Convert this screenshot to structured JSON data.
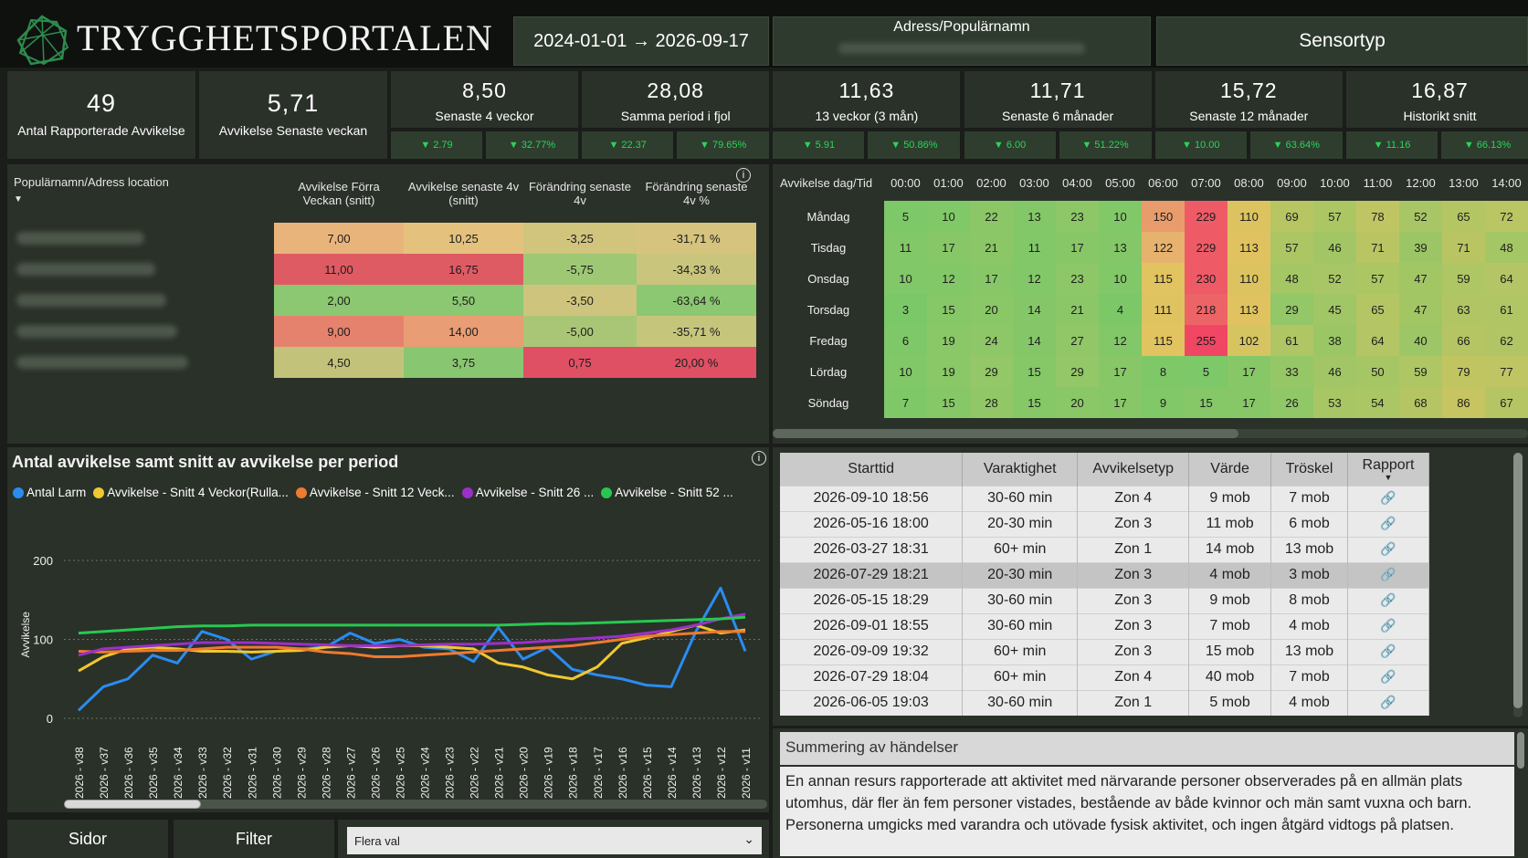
{
  "app": {
    "title": "TRYGGHETSPORTALEN"
  },
  "filters": {
    "date_range": "2024-01-01 → 2026-09-17",
    "address_label": "Adress/Populärnamn",
    "sensor_label": "Sensortyp"
  },
  "kpis": [
    {
      "value": "49",
      "label": "Antal Rapporterade Avvikelse"
    },
    {
      "value": "5,71",
      "label": "Avvikelse Senaste veckan"
    }
  ],
  "metrics": [
    {
      "value": "8,50",
      "label": "Senaste 4 veckor",
      "delta_a": "▼ 2.79",
      "delta_b": "▼ 32.77%"
    },
    {
      "value": "28,08",
      "label": "Samma period i fjol",
      "delta_a": "▼ 22.37",
      "delta_b": "▼ 79.65%"
    },
    {
      "value": "11,63",
      "label": "13 veckor (3 mån)",
      "delta_a": "▼ 5.91",
      "delta_b": "▼ 50.86%"
    },
    {
      "value": "11,71",
      "label": "Senaste 6 månader",
      "delta_a": "▼ 6.00",
      "delta_b": "▼ 51.22%"
    },
    {
      "value": "15,72",
      "label": "Senaste 12 månader",
      "delta_a": "▼ 10.00",
      "delta_b": "▼ 63.64%"
    },
    {
      "value": "16,87",
      "label": "Historikt snitt",
      "delta_a": "▼ 11.16",
      "delta_b": "▼ 66.13%"
    }
  ],
  "deviation_table": {
    "headers": [
      "Populärnamn/Adress location",
      "Avvikelse Förra Veckan (snitt)",
      "Avvikelse senaste 4v (snitt)",
      "Förändring senaste 4v",
      "Förändring senaste 4v %"
    ],
    "rows": [
      {
        "c1": "7,00",
        "c2": "10,25",
        "c3": "-3,25",
        "c4": "-31,71 %",
        "col": [
          "#e9b47b",
          "#e4c27d",
          "#d1c47d",
          "#d5c37e"
        ]
      },
      {
        "c1": "11,00",
        "c2": "16,75",
        "c3": "-5,75",
        "c4": "-34,33 %",
        "col": [
          "#df5b64",
          "#df5b64",
          "#9fc874",
          "#c9c57d"
        ]
      },
      {
        "c1": "2,00",
        "c2": "5,50",
        "c3": "-3,50",
        "c4": "-63,64 %",
        "col": [
          "#8cc772",
          "#8cc772",
          "#cec47d",
          "#8cc772"
        ]
      },
      {
        "c1": "9,00",
        "c2": "14,00",
        "c3": "-5,00",
        "c4": "-35,71 %",
        "col": [
          "#e5826d",
          "#e89d74",
          "#a9c676",
          "#c6c57c"
        ]
      },
      {
        "c1": "4,50",
        "c2": "3,75",
        "c3": "0,75",
        "c4": "20,00 %",
        "col": [
          "#c3c27a",
          "#89c671",
          "#df5065",
          "#df5065"
        ]
      }
    ]
  },
  "heatmap": {
    "corner": "Avvikelse dag/Tid",
    "hours": [
      "00:00",
      "01:00",
      "02:00",
      "03:00",
      "04:00",
      "05:00",
      "06:00",
      "07:00",
      "08:00",
      "09:00",
      "10:00",
      "11:00",
      "12:00",
      "13:00",
      "14:00"
    ],
    "rows": [
      {
        "day": "Måndag",
        "values": [
          5,
          10,
          22,
          13,
          23,
          10,
          150,
          229,
          110,
          69,
          57,
          78,
          52,
          65,
          72
        ]
      },
      {
        "day": "Tisdag",
        "values": [
          11,
          17,
          21,
          11,
          17,
          13,
          122,
          229,
          113,
          57,
          46,
          71,
          39,
          71,
          48
        ]
      },
      {
        "day": "Onsdag",
        "values": [
          10,
          12,
          17,
          12,
          23,
          10,
          115,
          230,
          110,
          48,
          52,
          57,
          47,
          59,
          64
        ]
      },
      {
        "day": "Torsdag",
        "values": [
          3,
          15,
          20,
          14,
          21,
          4,
          111,
          218,
          113,
          29,
          45,
          65,
          47,
          63,
          61
        ]
      },
      {
        "day": "Fredag",
        "values": [
          6,
          19,
          24,
          14,
          27,
          12,
          115,
          255,
          102,
          61,
          38,
          64,
          40,
          66,
          62
        ]
      },
      {
        "day": "Lördag",
        "values": [
          10,
          19,
          29,
          15,
          29,
          17,
          8,
          5,
          17,
          33,
          46,
          50,
          59,
          79,
          77
        ]
      },
      {
        "day": "Söndag",
        "values": [
          7,
          15,
          28,
          15,
          20,
          17,
          9,
          15,
          17,
          26,
          53,
          54,
          68,
          86,
          67
        ]
      }
    ]
  },
  "chart_data": {
    "type": "line",
    "title": "Antal avvikelse samt snitt av avvikelse per period",
    "ylabel": "Avvikelse",
    "ylim": [
      0,
      200
    ],
    "yticks": [
      0,
      100,
      200
    ],
    "x": [
      "2026 - v38",
      "2026 - v37",
      "2026 - v36",
      "2026 - v35",
      "2026 - v34",
      "2026 - v33",
      "2026 - v32",
      "2026 - v31",
      "2026 - v30",
      "2026 - v29",
      "2026 - v28",
      "2026 - v27",
      "2026 - v26",
      "2026 - v25",
      "2026 - v24",
      "2026 - v23",
      "2026 - v22",
      "2026 - v21",
      "2026 - v20",
      "2026 - v19",
      "2026 - v18",
      "2026 - v17",
      "2026 - v16",
      "2026 - v15",
      "2026 - v14",
      "2026 - v13",
      "2026 - v12",
      "2026 - v11"
    ],
    "series": [
      {
        "name": "Antal Larm",
        "color": "#2a8cf0",
        "values": [
          10,
          40,
          50,
          80,
          70,
          110,
          100,
          75,
          85,
          88,
          90,
          108,
          95,
          100,
          90,
          88,
          72,
          115,
          75,
          90,
          62,
          55,
          50,
          42,
          40,
          110,
          165,
          85
        ]
      },
      {
        "name": "Avvikelse - Snitt 4 Veckor(Rulla...",
        "color": "#f0c830",
        "values": [
          60,
          78,
          88,
          90,
          88,
          85,
          85,
          84,
          85,
          86,
          90,
          92,
          90,
          92,
          92,
          90,
          88,
          70,
          65,
          55,
          50,
          65,
          95,
          102,
          110,
          118,
          108,
          112
        ]
      },
      {
        "name": "Avvikelse - Snitt 12 Veck...",
        "color": "#f07a30",
        "values": [
          85,
          84,
          85,
          86,
          86,
          88,
          90,
          90,
          90,
          88,
          84,
          82,
          78,
          78,
          80,
          82,
          84,
          86,
          88,
          90,
          92,
          96,
          100,
          104,
          106,
          108,
          110,
          110
        ]
      },
      {
        "name": "Avvikelse - Snitt 26 ...",
        "color": "#9b30c8",
        "values": [
          80,
          88,
          90,
          92,
          94,
          96,
          96,
          96,
          95,
          94,
          93,
          92,
          92,
          92,
          93,
          94,
          94,
          95,
          96,
          98,
          100,
          102,
          104,
          108,
          112,
          118,
          126,
          132
        ]
      },
      {
        "name": "Avvikelse - Snitt 52 ...",
        "color": "#28c850",
        "values": [
          108,
          110,
          112,
          114,
          116,
          117,
          117,
          118,
          118,
          118,
          118,
          118,
          118,
          118,
          118,
          118,
          118,
          118,
          119,
          120,
          120,
          121,
          122,
          123,
          124,
          125,
          126,
          128
        ]
      }
    ]
  },
  "events_table": {
    "headers": [
      "Starttid",
      "Varaktighet",
      "Avvikelsetyp",
      "Värde",
      "Tröskel",
      "Rapport"
    ],
    "rows": [
      [
        "2026-09-10 18:56",
        "30-60 min",
        "Zon 4",
        "9 mob",
        "7 mob"
      ],
      [
        "2026-05-16 18:00",
        "20-30 min",
        "Zon 3",
        "11 mob",
        "6 mob"
      ],
      [
        "2026-03-27 18:31",
        "60+ min",
        "Zon 1",
        "14 mob",
        "13 mob"
      ],
      [
        "2026-07-29 18:21",
        "20-30 min",
        "Zon 3",
        "4 mob",
        "3 mob"
      ],
      [
        "2026-05-15 18:29",
        "30-60 min",
        "Zon 3",
        "9 mob",
        "8 mob"
      ],
      [
        "2026-09-01 18:55",
        "30-60 min",
        "Zon 3",
        "7 mob",
        "4 mob"
      ],
      [
        "2026-09-09 19:32",
        "60+ min",
        "Zon 3",
        "15 mob",
        "13 mob"
      ],
      [
        "2026-07-29 18:04",
        "60+ min",
        "Zon 4",
        "40 mob",
        "7 mob"
      ],
      [
        "2026-06-05 19:03",
        "30-60 min",
        "Zon 1",
        "5 mob",
        "4 mob"
      ]
    ],
    "selected_row": 3
  },
  "summary": {
    "title": "Summering av händelser",
    "text": "En annan resurs rapporterade att aktivitet med närvarande personer observerades på en allmän plats utomhus, där fler än fem personer vistades, bestående av både kvinnor och män samt vuxna och barn. Personerna umgicks med varandra och utövade fysisk aktivitet, och ingen åtgärd vidtogs på platsen."
  },
  "footer": {
    "pages_label": "Sidor",
    "filter_label": "Filter",
    "select_value": "Flera val"
  }
}
